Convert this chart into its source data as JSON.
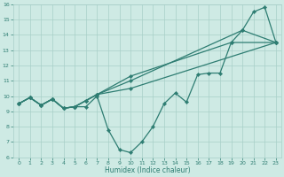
{
  "xlabel": "Humidex (Indice chaleur)",
  "line1_x": [
    0,
    1,
    2,
    3,
    4,
    5,
    6,
    7,
    8,
    9,
    10,
    11,
    12,
    13,
    14,
    15,
    16,
    17,
    18,
    19,
    20,
    21,
    22,
    23
  ],
  "line1_y": [
    9.5,
    9.9,
    9.4,
    9.8,
    9.2,
    9.3,
    9.3,
    10.0,
    7.8,
    6.5,
    6.3,
    7.0,
    8.0,
    9.5,
    10.2,
    9.6,
    11.4,
    11.5,
    11.5,
    13.5,
    14.3,
    15.5,
    15.8,
    13.5
  ],
  "line2_x": [
    0,
    1,
    2,
    3,
    4,
    5,
    6,
    7,
    10,
    23
  ],
  "line2_y": [
    9.5,
    9.9,
    9.4,
    9.8,
    9.2,
    9.3,
    9.7,
    10.1,
    10.5,
    13.5
  ],
  "line3_x": [
    0,
    1,
    2,
    3,
    4,
    5,
    6,
    7,
    10,
    20,
    23
  ],
  "line3_y": [
    9.5,
    9.9,
    9.4,
    9.8,
    9.2,
    9.3,
    9.7,
    10.1,
    11.0,
    14.3,
    13.5
  ],
  "line4_x": [
    0,
    1,
    2,
    3,
    4,
    5,
    6,
    7,
    10,
    19,
    23
  ],
  "line4_y": [
    9.5,
    9.9,
    9.4,
    9.8,
    9.2,
    9.3,
    9.7,
    10.1,
    11.3,
    13.5,
    13.5
  ],
  "color": "#2e7d72",
  "bg_color": "#ceeae4",
  "grid_color": "#a8cfc8",
  "ylim": [
    6,
    16
  ],
  "xlim": [
    -0.5,
    23.5
  ],
  "yticks": [
    6,
    7,
    8,
    9,
    10,
    11,
    12,
    13,
    14,
    15,
    16
  ],
  "xticks": [
    0,
    1,
    2,
    3,
    4,
    5,
    6,
    7,
    8,
    9,
    10,
    11,
    12,
    13,
    14,
    15,
    16,
    17,
    18,
    19,
    20,
    21,
    22,
    23
  ]
}
